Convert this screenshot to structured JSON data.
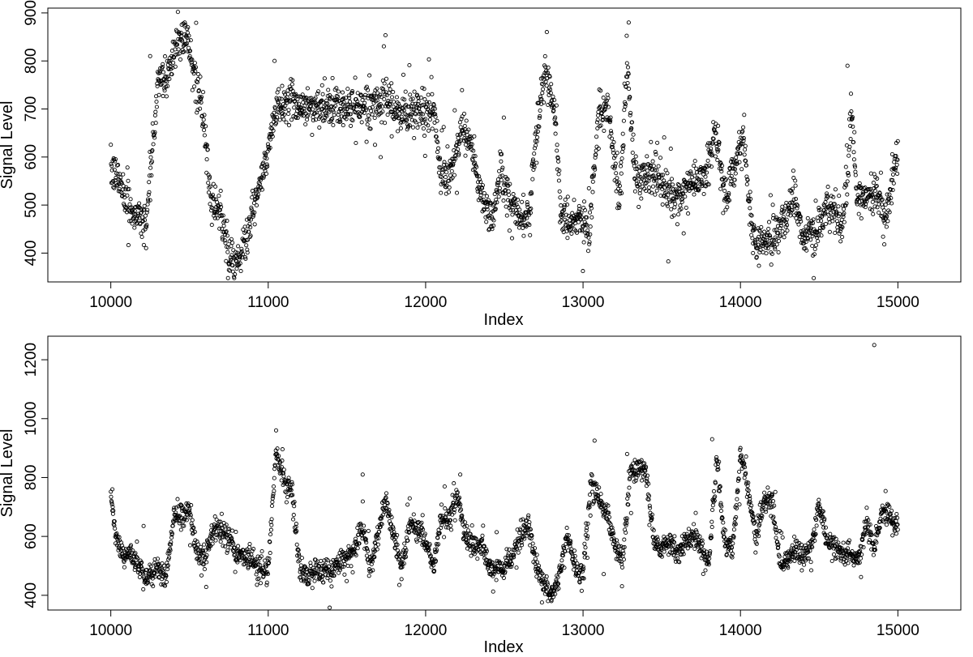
{
  "chart_data": [
    {
      "type": "scatter",
      "title": "",
      "xlabel": "Index",
      "ylabel": "Signal Level",
      "xlim": [
        9600,
        15400
      ],
      "ylim": [
        340,
        910
      ],
      "x_ticks": [
        10000,
        11000,
        12000,
        13000,
        14000,
        15000
      ],
      "y_ticks": [
        400,
        500,
        600,
        700,
        800,
        900
      ],
      "grid": false,
      "legend": "none",
      "marker_color": "#000000",
      "x_range": [
        10000,
        15000
      ],
      "point_count": 2500,
      "trend": {
        "x": [
          10000,
          10050,
          10080,
          10150,
          10230,
          10300,
          10350,
          10420,
          10480,
          10530,
          10580,
          10640,
          10700,
          10760,
          10810,
          10870,
          10920,
          10980,
          11050,
          11150,
          11250,
          11350,
          11450,
          11550,
          11650,
          11750,
          11850,
          11950,
          12000,
          12050,
          12100,
          12150,
          12220,
          12280,
          12350,
          12420,
          12480,
          12540,
          12600,
          12660,
          12700,
          12760,
          12820,
          12860,
          12920,
          12980,
          13040,
          13100,
          13160,
          13230,
          13280,
          13330,
          13400,
          13480,
          13560,
          13640,
          13720,
          13780,
          13840,
          13900,
          13960,
          14020,
          14060,
          14100,
          14160,
          14220,
          14280,
          14340,
          14400,
          14460,
          14520,
          14580,
          14640,
          14680,
          14700,
          14740,
          14800,
          14860,
          14920,
          15000
        ],
        "y": [
          570,
          555,
          520,
          480,
          475,
          760,
          760,
          840,
          850,
          780,
          700,
          500,
          480,
          380,
          385,
          440,
          510,
          580,
          700,
          720,
          700,
          710,
          700,
          705,
          710,
          710,
          690,
          700,
          700,
          690,
          560,
          560,
          650,
          640,
          520,
          470,
          580,
          500,
          480,
          480,
          650,
          780,
          700,
          480,
          460,
          480,
          440,
          700,
          700,
          510,
          780,
          560,
          560,
          550,
          520,
          520,
          560,
          560,
          650,
          520,
          580,
          650,
          480,
          420,
          425,
          440,
          470,
          520,
          430,
          440,
          470,
          500,
          450,
          550,
          720,
          510,
          520,
          540,
          470,
          610
        ]
      },
      "extreme_points": {
        "x": [
          10470,
          10490,
          10250,
          11040,
          12770,
          13290,
          14680,
          10750,
          14080,
          14460
        ],
        "y": [
          880,
          870,
          810,
          800,
          860,
          880,
          790,
          365,
          400,
          395
        ]
      }
    },
    {
      "type": "scatter",
      "title": "",
      "xlabel": "Index",
      "ylabel": "Signal Level",
      "xlim": [
        9600,
        15400
      ],
      "ylim": [
        350,
        1280
      ],
      "x_ticks": [
        10000,
        11000,
        12000,
        13000,
        14000,
        15000
      ],
      "y_ticks": [
        400,
        600,
        800,
        1000,
        1200
      ],
      "grid": false,
      "legend": "none",
      "marker_color": "#000000",
      "x_range": [
        10000,
        15000
      ],
      "point_count": 2500,
      "trend": {
        "x": [
          10000,
          10030,
          10080,
          10150,
          10220,
          10300,
          10350,
          10400,
          10450,
          10500,
          10550,
          10600,
          10660,
          10720,
          10800,
          10880,
          10950,
          11000,
          11050,
          11100,
          11150,
          11200,
          11250,
          11300,
          11400,
          11480,
          11550,
          11600,
          11650,
          11700,
          11750,
          11800,
          11850,
          11900,
          11950,
          12000,
          12050,
          12100,
          12150,
          12200,
          12250,
          12300,
          12350,
          12400,
          12450,
          12500,
          12550,
          12600,
          12650,
          12700,
          12750,
          12800,
          12850,
          12900,
          12950,
          13000,
          13050,
          13100,
          13150,
          13200,
          13250,
          13300,
          13350,
          13400,
          13450,
          13500,
          13550,
          13600,
          13650,
          13700,
          13750,
          13800,
          13850,
          13900,
          13950,
          14000,
          14050,
          14100,
          14150,
          14200,
          14250,
          14300,
          14350,
          14400,
          14450,
          14500,
          14550,
          14600,
          14650,
          14700,
          14750,
          14800,
          14850,
          14900,
          14950,
          15000
        ],
        "y": [
          740,
          610,
          530,
          520,
          460,
          490,
          460,
          660,
          670,
          690,
          540,
          530,
          630,
          620,
          540,
          530,
          490,
          490,
          900,
          780,
          760,
          490,
          460,
          490,
          480,
          530,
          550,
          640,
          480,
          620,
          720,
          590,
          500,
          650,
          620,
          590,
          500,
          660,
          650,
          740,
          610,
          560,
          580,
          500,
          490,
          500,
          530,
          600,
          640,
          500,
          440,
          400,
          480,
          600,
          500,
          470,
          780,
          740,
          680,
          580,
          500,
          820,
          830,
          820,
          580,
          560,
          580,
          530,
          580,
          600,
          570,
          510,
          870,
          580,
          560,
          880,
          750,
          600,
          720,
          730,
          500,
          520,
          560,
          530,
          560,
          720,
          580,
          560,
          540,
          540,
          520,
          660,
          560,
          680,
          660,
          640
        ]
      },
      "extreme_points": {
        "x": [
          11050,
          14850,
          12800,
          12790,
          13820,
          14000,
          10010,
          12220,
          11600,
          13280
        ],
        "y": [
          960,
          1250,
          385,
          390,
          930,
          900,
          760,
          810,
          810,
          880
        ]
      }
    }
  ]
}
